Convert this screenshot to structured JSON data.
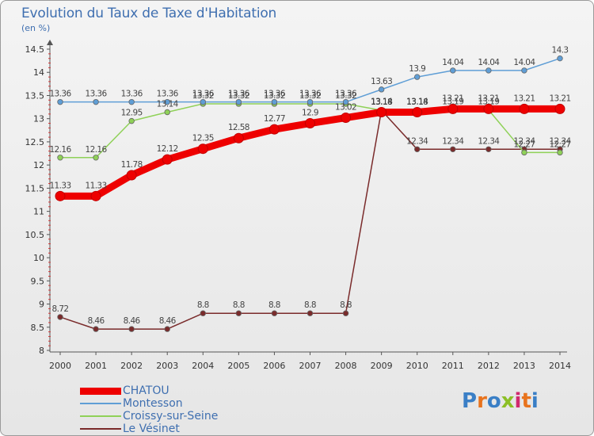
{
  "title": "Evolution du Taux de Taxe d'Habitation",
  "subtitle": "(en %)",
  "logo": {
    "text": "Proxiti",
    "letters": [
      "P",
      "r",
      "o",
      "x",
      "i",
      "t",
      "i"
    ],
    "colors": [
      "#3a7fc6",
      "#e8731d",
      "#3a7fc6",
      "#8cbf26",
      "#d12a6f",
      "#e8731d",
      "#3a7fc6"
    ]
  },
  "chart_data": {
    "type": "line",
    "title": "Evolution du Taux de Taxe d'Habitation",
    "ylabel": "(en %)",
    "xlabel": "",
    "ylim": [
      8,
      14.5
    ],
    "yticks": [
      "8",
      "8.5",
      "9",
      "9.5",
      "10",
      "10.5",
      "11",
      "11.5",
      "12",
      "12.5",
      "13",
      "13.5",
      "14",
      "14.5"
    ],
    "x": [
      "2000",
      "2001",
      "2002",
      "2003",
      "2004",
      "2005",
      "2006",
      "2007",
      "2008",
      "2009",
      "2010",
      "2011",
      "2012",
      "2013",
      "2014"
    ],
    "grid": false,
    "legend_placement": "bottom-left",
    "series": [
      {
        "name": "CHATOU",
        "color": "#ee0000",
        "values": [
          11.33,
          11.33,
          11.78,
          12.12,
          12.35,
          12.58,
          12.77,
          12.9,
          13.02,
          13.14,
          13.14,
          13.21,
          13.21,
          13.21,
          13.21
        ],
        "labels": [
          "11.33",
          "11.33",
          "11.78",
          "12.12",
          "12.35",
          "12.58",
          "12.77",
          "12.9",
          "13.02",
          "13.14",
          "13.14",
          "13.21",
          "13.21",
          "13.21",
          "13.21"
        ]
      },
      {
        "name": "Montesson",
        "color": "#5f9ed6",
        "values": [
          13.36,
          13.36,
          13.36,
          13.36,
          13.36,
          13.36,
          13.36,
          13.36,
          13.36,
          13.63,
          13.9,
          14.04,
          14.04,
          14.04,
          14.3
        ],
        "labels": [
          "13.36",
          "13.36",
          "13.36",
          "13.36",
          "13.36",
          "13.36",
          "13.36",
          "13.36",
          "13.36",
          "13.63",
          "13.9",
          "14.04",
          "14.04",
          "14.04",
          "14.3"
        ]
      },
      {
        "name": "Croissy-sur-Seine",
        "color": "#8fd158",
        "values": [
          12.16,
          12.16,
          12.95,
          13.14,
          13.32,
          13.32,
          13.32,
          13.32,
          13.32,
          13.18,
          13.18,
          13.19,
          13.19,
          12.27,
          12.27
        ],
        "labels": [
          "12.16",
          "12.16",
          "12.95",
          "13.14",
          "13.32",
          "13.32",
          "13.32",
          "13.32",
          "13.32",
          "13.18",
          "13.18",
          "13.19",
          "13.19",
          "12.27",
          "12.27"
        ]
      },
      {
        "name": "Le Vésinet",
        "color": "#7a2b2b",
        "values": [
          8.72,
          8.46,
          8.46,
          8.46,
          8.8,
          8.8,
          8.8,
          8.8,
          8.8,
          13.18,
          12.34,
          12.34,
          12.34,
          12.34,
          12.34
        ],
        "labels": [
          "8.72",
          "8.46",
          "8.46",
          "8.46",
          "8.8",
          "8.8",
          "8.8",
          "8.8",
          "8.8",
          "13.18",
          "12.34",
          "12.34",
          "12.34",
          "12.34",
          "12.34"
        ]
      }
    ]
  }
}
